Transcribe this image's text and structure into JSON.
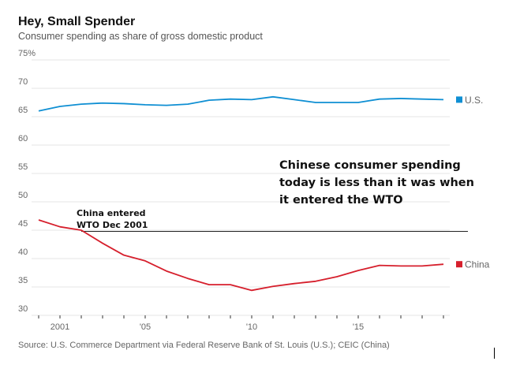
{
  "chart_data": {
    "type": "line",
    "title": "Hey, Small Spender",
    "subtitle": "Consumer spending as share of gross domestic product",
    "source": "Source: U.S. Commerce Department via Federal Reserve Bank of St. Louis (U.S.); CEIC (China)",
    "x": [
      2000,
      2001,
      2002,
      2003,
      2004,
      2005,
      2006,
      2007,
      2008,
      2009,
      2010,
      2011,
      2012,
      2013,
      2014,
      2015,
      2016,
      2017,
      2018,
      2019
    ],
    "xticks": [
      {
        "year": 2001,
        "label": "2001"
      },
      {
        "year": 2005,
        "label": "'05"
      },
      {
        "year": 2010,
        "label": "'10"
      },
      {
        "year": 2015,
        "label": "'15"
      }
    ],
    "yticks": [
      "75%",
      "70",
      "65",
      "60",
      "55",
      "50",
      "45",
      "40",
      "35",
      "30"
    ],
    "ylim": [
      30,
      75
    ],
    "xlim": [
      2000,
      2019
    ],
    "grid": true,
    "series": [
      {
        "name": "U.S.",
        "color": "#0f8fd3",
        "values": [
          66.0,
          66.8,
          67.2,
          67.4,
          67.3,
          67.1,
          67.0,
          67.2,
          67.9,
          68.1,
          68.0,
          68.5,
          68.0,
          67.5,
          67.5,
          67.5,
          68.1,
          68.2,
          68.1,
          68.0
        ]
      },
      {
        "name": "China",
        "color": "#d61f2c",
        "values": [
          46.8,
          45.6,
          45.0,
          42.7,
          40.6,
          39.6,
          37.8,
          36.5,
          35.4,
          35.4,
          34.4,
          35.1,
          35.6,
          36.0,
          36.8,
          37.9,
          38.8,
          38.7,
          38.7,
          39.0
        ]
      }
    ],
    "reference_line": {
      "value": 44.8,
      "from_year": 2002
    },
    "annotations": [
      {
        "text": "China entered",
        "line": 1
      },
      {
        "text": "WTO Dec 2001",
        "line": 2
      },
      {
        "text": "Chinese consumer spending",
        "line": 1
      },
      {
        "text": "today is less than it was when",
        "line": 2
      },
      {
        "text": "it entered the WTO",
        "line": 3
      }
    ]
  }
}
